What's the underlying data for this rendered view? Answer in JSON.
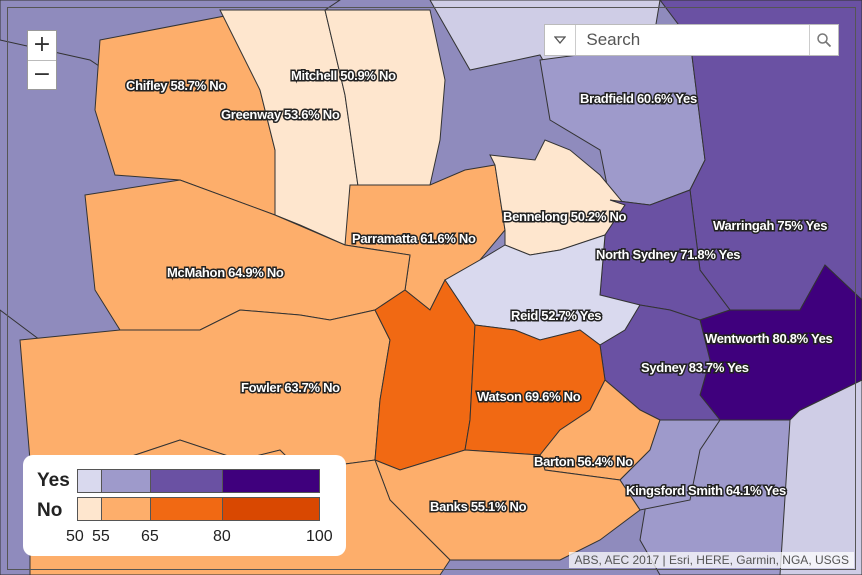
{
  "map": {
    "electorates": [
      {
        "name": "Chifley",
        "label": "Chifley 58.7% No"
      },
      {
        "name": "Mitchell",
        "label": "Mitchell 50.9% No"
      },
      {
        "name": "Greenway",
        "label": "Greenway 53.6% No"
      },
      {
        "name": "Bradfield",
        "label": "Bradfield 60.6% Yes"
      },
      {
        "name": "Bennelong",
        "label": "Bennelong 50.2% No"
      },
      {
        "name": "Warringah",
        "label": "Warringah 75% Yes"
      },
      {
        "name": "Parramatta",
        "label": "Parramatta 61.6% No"
      },
      {
        "name": "North Sydney",
        "label": "North Sydney 71.8% Yes"
      },
      {
        "name": "McMahon",
        "label": "McMahon 64.9% No"
      },
      {
        "name": "Reid",
        "label": "Reid 52.7% Yes"
      },
      {
        "name": "Wentworth",
        "label": "Wentworth 80.8% Yes"
      },
      {
        "name": "Sydney",
        "label": "Sydney 83.7% Yes"
      },
      {
        "name": "Fowler",
        "label": "Fowler 63.7% No"
      },
      {
        "name": "Watson",
        "label": "Watson 69.6% No"
      },
      {
        "name": "Barton",
        "label": "Barton 56.4% No"
      },
      {
        "name": "Kingsford Smith",
        "label": "Kingsford Smith 64.1% Yes"
      },
      {
        "name": "Banks",
        "label": "Banks 55.1% No"
      }
    ]
  },
  "zoom": {
    "in_label": "+",
    "out_label": "−"
  },
  "search": {
    "placeholder": "Search",
    "value": ""
  },
  "legend": {
    "yes_label": "Yes",
    "no_label": "No",
    "ticks": [
      "50",
      "55",
      "65",
      "80",
      "100"
    ],
    "yes_colors": [
      "#d9d9ee",
      "#9e9acb",
      "#6a51a3",
      "#3f007d"
    ],
    "no_colors": [
      "#fee6ce",
      "#fdae6b",
      "#f16913",
      "#d94801"
    ]
  },
  "attribution": "ABS, AEC 2017 | Esri, HERE, Garmin, NGA, USGS",
  "icons": {
    "search": "search-icon",
    "dropdown": "chevron-down-icon"
  }
}
